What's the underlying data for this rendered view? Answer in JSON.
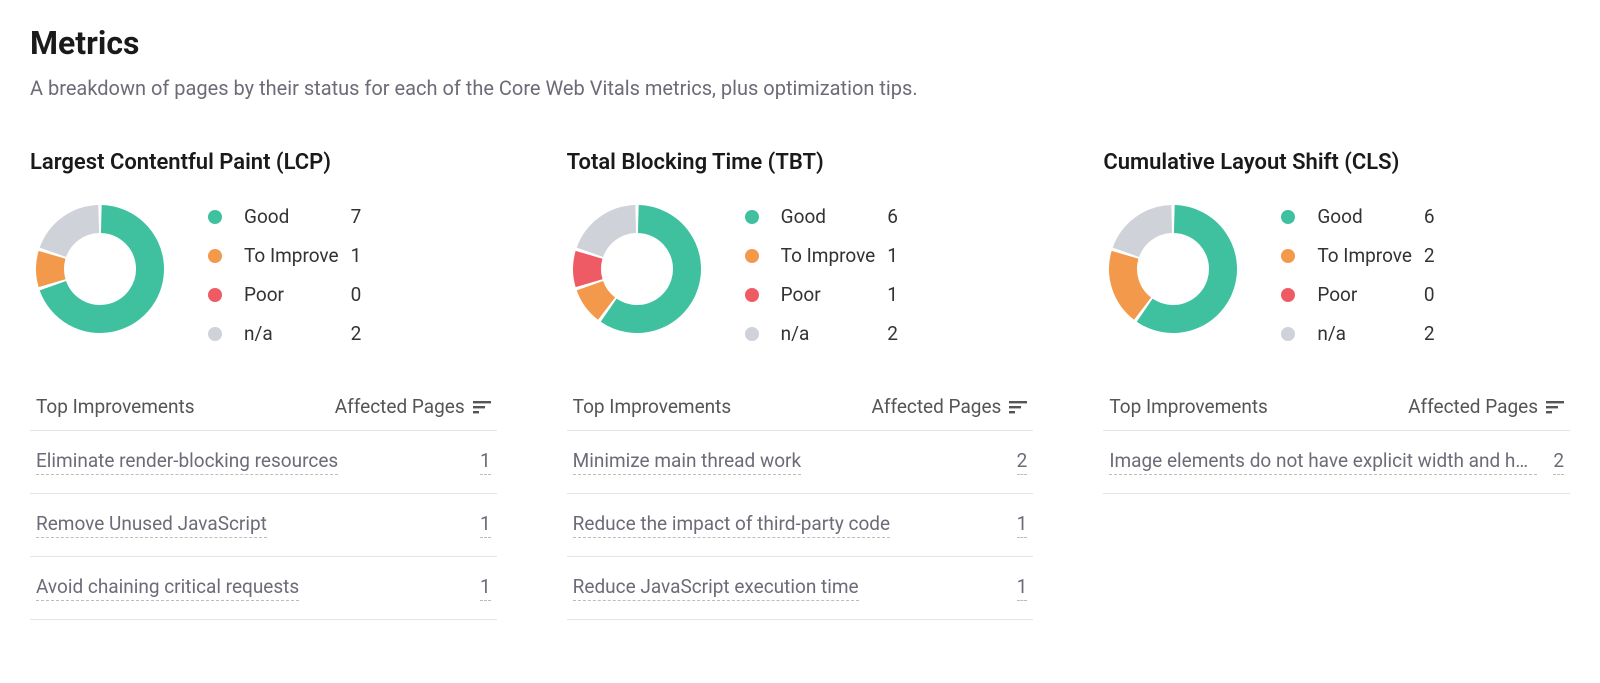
{
  "header": {
    "title": "Metrics",
    "subtitle": "A breakdown of pages by their status for each of the Core Web Vitals metrics, plus optimization tips."
  },
  "palette": {
    "good": "#3fc1a0",
    "to_improve": "#f3994b",
    "poor": "#ef5b65",
    "na": "#cfd2d8",
    "gap": "#ffffff",
    "donut_stroke_width": 28,
    "donut_radius": 50,
    "gap_deg": 3
  },
  "legend_labels": {
    "good": "Good",
    "to_improve": "To Improve",
    "poor": "Poor",
    "na": "n/a"
  },
  "table_headers": {
    "improvements": "Top Improvements",
    "affected": "Affected Pages"
  },
  "metrics": [
    {
      "id": "lcp",
      "title": "Largest Contentful Paint (LCP)",
      "values": {
        "good": 7,
        "to_improve": 1,
        "poor": 0,
        "na": 2
      },
      "improvements": [
        {
          "label": "Eliminate render-blocking resources",
          "count": 1
        },
        {
          "label": "Remove Unused JavaScript",
          "count": 1
        },
        {
          "label": "Avoid chaining critical requests",
          "count": 1
        }
      ]
    },
    {
      "id": "tbt",
      "title": "Total Blocking Time (TBT)",
      "values": {
        "good": 6,
        "to_improve": 1,
        "poor": 1,
        "na": 2
      },
      "improvements": [
        {
          "label": "Minimize main thread work",
          "count": 2
        },
        {
          "label": "Reduce the impact of third-party code",
          "count": 1
        },
        {
          "label": "Reduce JavaScript execution time",
          "count": 1
        }
      ]
    },
    {
      "id": "cls",
      "title": "Cumulative Layout Shift (CLS)",
      "values": {
        "good": 6,
        "to_improve": 2,
        "poor": 0,
        "na": 2
      },
      "improvements": [
        {
          "label": "Image elements do not have explicit width and height",
          "count": 2
        }
      ]
    }
  ]
}
